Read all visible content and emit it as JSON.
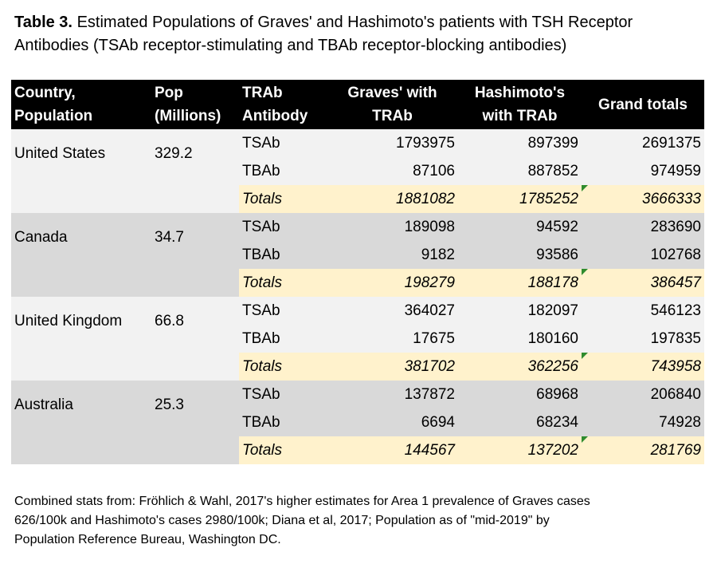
{
  "title": {
    "label": "Table 3.",
    "lines": [
      "Estimated Populations of Graves' and Hashimoto's patients with TSH Receptor",
      "Antibodies (TSAb receptor-stimulating and TBAb receptor-blocking antibodies)"
    ]
  },
  "table": {
    "headers": [
      [
        "Country,",
        "Population"
      ],
      [
        "Pop",
        "(Millions)"
      ],
      [
        "TRAb",
        "Antibody"
      ],
      [
        "Graves' with",
        "TRAb"
      ],
      [
        "Hashimoto's",
        "with TRAb"
      ],
      [
        "Grand totals"
      ]
    ],
    "groups": [
      {
        "country": "United States",
        "population": 329.2,
        "rows": [
          [
            "TSAb",
            1793975,
            897399,
            2691375
          ],
          [
            "TBAb",
            87106,
            887852,
            974959
          ],
          [
            "Totals",
            1881082,
            1785252,
            3666333
          ]
        ]
      },
      {
        "country": "Canada",
        "population": 34.7,
        "rows": [
          [
            "TSAb",
            189098,
            94592,
            283690
          ],
          [
            "TBAb",
            9182,
            93586,
            102768
          ],
          [
            "Totals",
            198279,
            188178,
            386457
          ]
        ]
      },
      {
        "country": "United Kingdom",
        "population": 66.8,
        "rows": [
          [
            "TSAb",
            364027,
            182097,
            546123
          ],
          [
            "TBAb",
            17675,
            180160,
            197835
          ],
          [
            "Totals",
            381702,
            362256,
            743958
          ]
        ]
      },
      {
        "country": "Australia",
        "population": 25.3,
        "rows": [
          [
            "TSAb",
            137872,
            68968,
            206840
          ],
          [
            "TBAb",
            6694,
            68234,
            74928
          ],
          [
            "Totals",
            144567,
            137202,
            281769
          ]
        ]
      }
    ]
  },
  "footnote": [
    "Combined stats from: Fröhlich & Wahl, 2017's higher estimates for Area 1 prevalence of Graves cases",
    "626/100k and Hashimoto's cases 2980/100k; Diana et al, 2017; Population as of \"mid-2019\" by",
    "Population Reference Bureau, Washington DC."
  ]
}
